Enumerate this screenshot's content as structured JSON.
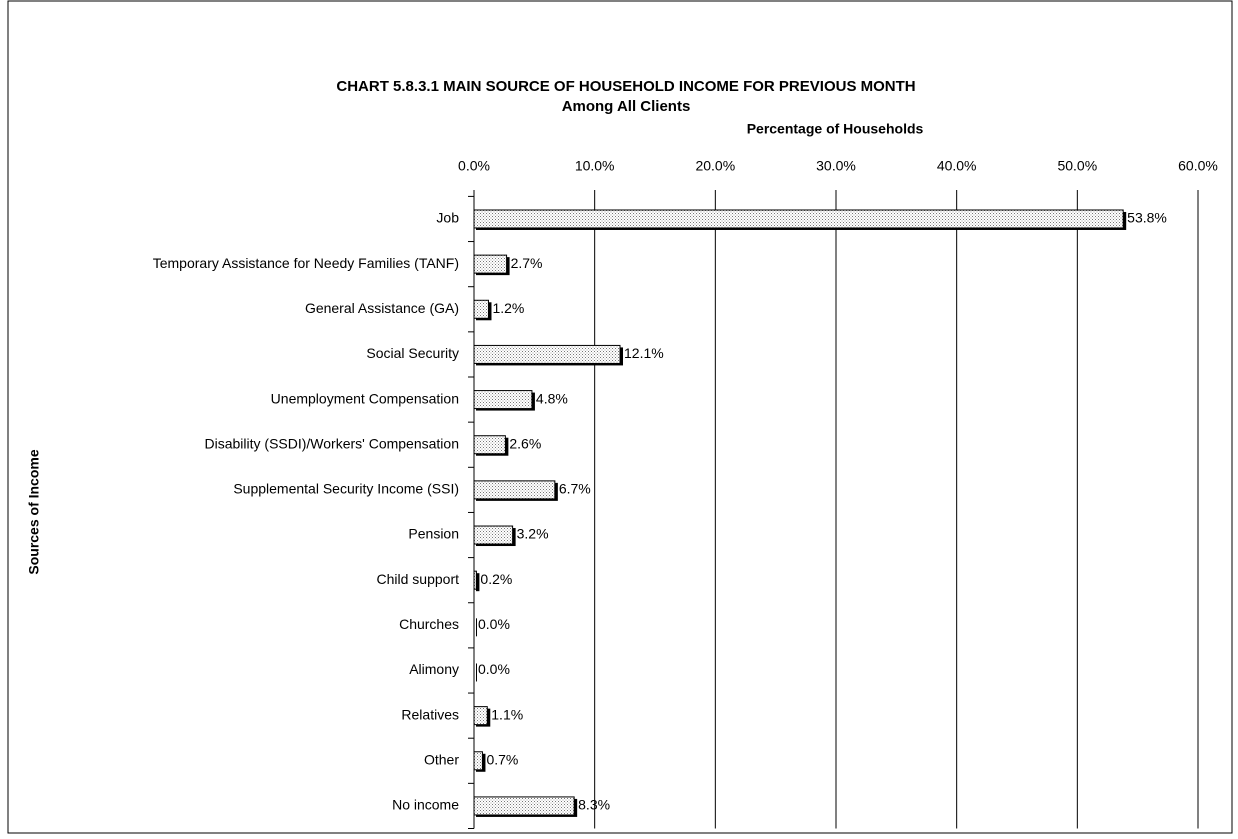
{
  "chart_data": {
    "type": "bar",
    "orientation": "horizontal",
    "title": "CHART 5.8.3.1    MAIN SOURCE OF HOUSEHOLD INCOME FOR PREVIOUS MONTH",
    "subtitle": "Among All Clients",
    "x_label": "Percentage of Households",
    "y_label": "Sources of Income",
    "categories": [
      "Job",
      "Temporary Assistance for Needy Families (TANF)",
      "General Assistance (GA)",
      "Social Security",
      "Unemployment Compensation",
      "Disability (SSDI)/Workers' Compensation",
      "Supplemental Security Income (SSI)",
      "Pension",
      "Child support",
      "Churches",
      "Alimony",
      "Relatives",
      "Other",
      "No income"
    ],
    "values": [
      53.8,
      2.7,
      1.2,
      12.1,
      4.8,
      2.6,
      6.7,
      3.2,
      0.2,
      0.0,
      0.0,
      1.1,
      0.7,
      8.3
    ],
    "value_labels": [
      "53.8%",
      "2.7%",
      "1.2%",
      "12.1%",
      "4.8%",
      "2.6%",
      "6.7%",
      "3.2%",
      "0.2%",
      "0.0%",
      "0.0%",
      "1.1%",
      "0.7%",
      "8.3%"
    ],
    "xlim": [
      0,
      60
    ],
    "xticks": [
      {
        "value": 0,
        "label": "0.0%"
      },
      {
        "value": 10,
        "label": "10.0%"
      },
      {
        "value": 20,
        "label": "20.0%"
      },
      {
        "value": 30,
        "label": "30.0%"
      },
      {
        "value": 40,
        "label": "40.0%"
      },
      {
        "value": 50,
        "label": "50.0%"
      },
      {
        "value": 60,
        "label": "60.0%"
      }
    ],
    "grid": true
  }
}
